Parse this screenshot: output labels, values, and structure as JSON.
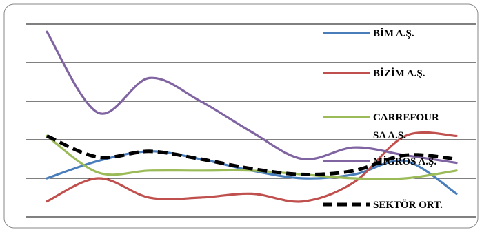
{
  "chart_data": {
    "type": "line",
    "title": "",
    "xlabel": "",
    "ylabel": "",
    "x": [
      1,
      2,
      3,
      4,
      5,
      6,
      7,
      8,
      9
    ],
    "ylim": [
      0,
      5
    ],
    "grid": true,
    "legend_position": "right",
    "series": [
      {
        "name": "BİM A.Ş.",
        "color": "#4a7ebb",
        "dashed": false,
        "values": [
          1.0,
          1.45,
          1.7,
          1.5,
          1.2,
          1.0,
          1.1,
          1.45,
          0.6
        ]
      },
      {
        "name": "BİZİM A.Ş.",
        "color": "#c0504d",
        "dashed": false,
        "values": [
          0.4,
          1.0,
          0.5,
          0.5,
          0.6,
          0.4,
          0.9,
          2.1,
          2.1
        ]
      },
      {
        "name": "CARREFOUR SA A.Ş.",
        "color": "#9bbb59",
        "dashed": false,
        "values": [
          2.1,
          1.15,
          1.2,
          1.2,
          1.2,
          1.1,
          1.0,
          1.0,
          1.2
        ]
      },
      {
        "name": "MİGROS A.Ş.",
        "color": "#8064a2",
        "dashed": false,
        "values": [
          4.8,
          2.7,
          3.6,
          3.0,
          2.2,
          1.5,
          1.8,
          1.6,
          1.4
        ]
      },
      {
        "name": "SEKTÖR ORT.",
        "color": "#000000",
        "dashed": true,
        "values": [
          2.1,
          1.55,
          1.7,
          1.5,
          1.25,
          1.1,
          1.2,
          1.6,
          1.5
        ]
      }
    ]
  }
}
